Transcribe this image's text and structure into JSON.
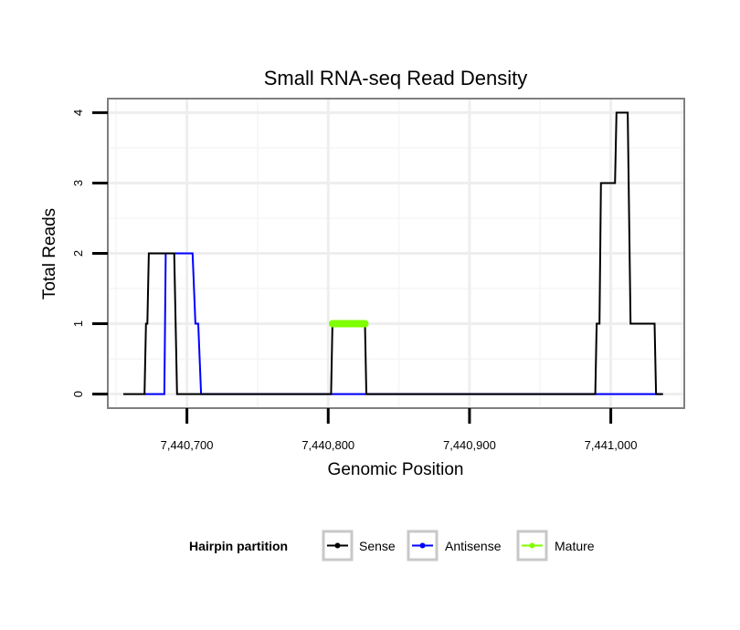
{
  "chart_data": {
    "type": "line",
    "title": "Small RNA-seq Read Density",
    "xlabel": "Genomic Position",
    "ylabel": "Total Reads",
    "xlim": [
      7440644,
      7441052
    ],
    "ylim": [
      -0.2,
      4.2
    ],
    "x_ticks": [
      7440700,
      7440800,
      7440900,
      7441000
    ],
    "x_tick_labels": [
      "7,440,700",
      "7,440,800",
      "7,440,900",
      "7,441,000"
    ],
    "y_ticks": [
      0,
      1,
      2,
      3,
      4
    ],
    "y_tick_labels": [
      "0",
      "1",
      "2",
      "3",
      "4"
    ],
    "grid": true,
    "legend": {
      "title": "Hairpin partition",
      "position": "bottom",
      "entries": [
        {
          "label": "Sense",
          "color": "#000000"
        },
        {
          "label": "Antisense",
          "color": "#0000ff"
        },
        {
          "label": "Mature",
          "color": "#7fff00"
        }
      ]
    },
    "series": [
      {
        "name": "Sense",
        "color": "#000000",
        "points": [
          [
            7440655,
            0
          ],
          [
            7440670,
            0
          ],
          [
            7440671,
            1
          ],
          [
            7440672,
            1
          ],
          [
            7440673,
            2
          ],
          [
            7440684,
            2
          ],
          [
            7440685,
            2
          ],
          [
            7440691,
            2
          ],
          [
            7440693,
            0
          ],
          [
            7440802,
            0
          ],
          [
            7440803,
            1
          ],
          [
            7440826,
            1
          ],
          [
            7440827,
            0
          ],
          [
            7440989,
            0
          ],
          [
            7440990,
            1
          ],
          [
            7440992,
            1
          ],
          [
            7440993,
            3
          ],
          [
            7441003,
            3
          ],
          [
            7441004,
            4
          ],
          [
            7441012,
            4
          ],
          [
            7441014,
            1
          ],
          [
            7441031,
            1
          ],
          [
            7441032,
            0
          ],
          [
            7441037,
            0
          ]
        ]
      },
      {
        "name": "Antisense",
        "color": "#0000ff",
        "points": [
          [
            7440670,
            0
          ],
          [
            7440684,
            0
          ],
          [
            7440685,
            2
          ],
          [
            7440704,
            2
          ],
          [
            7440706,
            1
          ],
          [
            7440708,
            1
          ],
          [
            7440710,
            0
          ],
          [
            7440802,
            0
          ],
          [
            7441036,
            0
          ]
        ]
      },
      {
        "name": "Mature",
        "color": "#7fff00",
        "points": [
          [
            7440803,
            1
          ],
          [
            7440826,
            1
          ]
        ]
      }
    ]
  }
}
